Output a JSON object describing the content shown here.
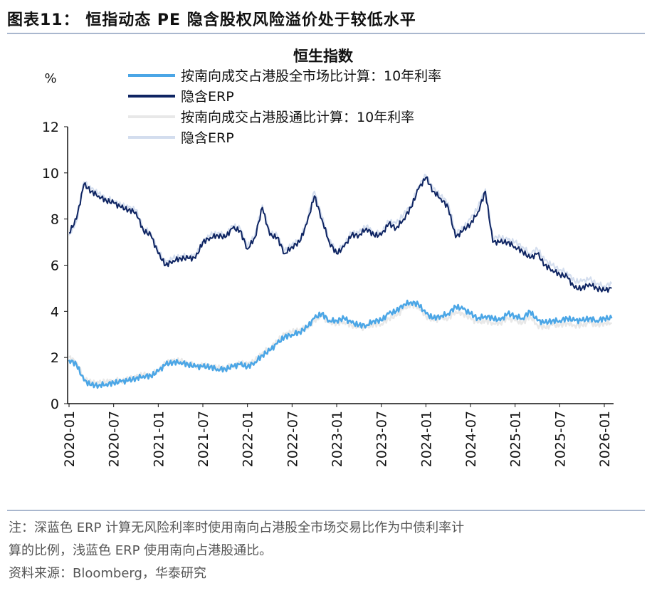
{
  "figure_title": "图表11： 恒指动态 PE 隐含股权风险溢价处于较低水平",
  "notes": {
    "line1": "注：深蓝色 ERP 计算无风险利率时使用南向占港股全市场交易比作为中债利率计",
    "line2": "算的比例，浅蓝色 ERP 使用南向占港股通比。",
    "source": "资料来源：Bloomberg，华泰研究"
  },
  "chart_data": {
    "type": "line",
    "title": "恒生指数",
    "ylabel": "%",
    "ylim": [
      0,
      12
    ],
    "yticks": [
      "0",
      "2",
      "4",
      "6",
      "8",
      "10",
      "12"
    ],
    "xrange": [
      "2020-01",
      "2026-02"
    ],
    "xticks": [
      "2020-01",
      "2020-07",
      "2021-01",
      "2021-07",
      "2022-01",
      "2022-07",
      "2023-01",
      "2023-07",
      "2024-01",
      "2024-07",
      "2025-01",
      "2025-07",
      "2026-01"
    ],
    "grid": false,
    "legend_position": "top",
    "x": [
      "2020-01",
      "2020-02",
      "2020-03",
      "2020-04",
      "2020-05",
      "2020-06",
      "2020-07",
      "2020-08",
      "2020-09",
      "2020-10",
      "2020-11",
      "2020-12",
      "2021-01",
      "2021-02",
      "2021-03",
      "2021-04",
      "2021-05",
      "2021-06",
      "2021-07",
      "2021-08",
      "2021-09",
      "2021-10",
      "2021-11",
      "2021-12",
      "2022-01",
      "2022-02",
      "2022-03",
      "2022-04",
      "2022-05",
      "2022-06",
      "2022-07",
      "2022-08",
      "2022-09",
      "2022-10",
      "2022-11",
      "2022-12",
      "2023-01",
      "2023-02",
      "2023-03",
      "2023-04",
      "2023-05",
      "2023-06",
      "2023-07",
      "2023-08",
      "2023-09",
      "2023-10",
      "2023-11",
      "2023-12",
      "2024-01",
      "2024-02",
      "2024-03",
      "2024-04",
      "2024-05",
      "2024-06",
      "2024-07",
      "2024-08",
      "2024-09",
      "2024-10",
      "2024-11",
      "2024-12",
      "2025-01",
      "2025-02",
      "2025-03",
      "2025-04",
      "2025-05",
      "2025-06",
      "2025-07",
      "2025-08",
      "2025-09",
      "2025-10",
      "2025-11",
      "2025-12",
      "2026-01",
      "2026-02"
    ],
    "series": [
      {
        "name": "按南向成交占港股通比计算：10年利率",
        "color": "#E8E8E8",
        "values": [
          2.0,
          1.8,
          1.1,
          0.9,
          0.9,
          0.95,
          1.0,
          1.0,
          1.05,
          1.15,
          1.25,
          1.25,
          1.45,
          1.75,
          1.85,
          1.85,
          1.75,
          1.65,
          1.65,
          1.6,
          1.55,
          1.55,
          1.65,
          1.75,
          1.7,
          1.85,
          2.2,
          2.4,
          2.7,
          3.0,
          3.1,
          3.2,
          3.3,
          3.6,
          3.8,
          3.5,
          3.5,
          3.55,
          3.4,
          3.3,
          3.3,
          3.45,
          3.45,
          3.7,
          3.8,
          4.1,
          4.3,
          4.2,
          3.8,
          3.6,
          3.7,
          3.7,
          4.0,
          3.9,
          3.7,
          3.5,
          3.6,
          3.5,
          3.5,
          3.7,
          3.6,
          3.5,
          3.8,
          3.4,
          3.3,
          3.4,
          3.4,
          3.5,
          3.4,
          3.4,
          3.5,
          3.4,
          3.5,
          3.5
        ]
      },
      {
        "name": "隐含ERP",
        "color": "#D3DDEE",
        "values": [
          7.3,
          7.9,
          9.6,
          9.3,
          9.1,
          8.9,
          8.8,
          8.6,
          8.5,
          8.4,
          7.6,
          7.4,
          6.6,
          6.1,
          6.3,
          6.4,
          6.4,
          6.4,
          7.0,
          7.3,
          7.4,
          7.3,
          7.7,
          7.6,
          6.8,
          7.3,
          8.6,
          7.4,
          7.3,
          6.6,
          6.9,
          7.1,
          7.9,
          9.2,
          8.1,
          7.1,
          6.6,
          6.9,
          7.4,
          7.4,
          7.7,
          7.4,
          7.4,
          7.9,
          7.8,
          8.2,
          8.6,
          9.4,
          9.9,
          9.3,
          9.0,
          8.7,
          7.4,
          7.6,
          8.0,
          8.5,
          9.3,
          7.2,
          7.2,
          7.1,
          7.0,
          6.8,
          6.5,
          6.7,
          6.2,
          6.0,
          5.8,
          5.7,
          5.3,
          5.3,
          5.4,
          5.2,
          5.1,
          5.2
        ]
      },
      {
        "name": "按南向成交占港股全市场比计算：10年利率",
        "color": "#4BA6E6",
        "values": [
          1.9,
          1.7,
          1.0,
          0.8,
          0.8,
          0.85,
          0.9,
          0.95,
          1.0,
          1.1,
          1.2,
          1.2,
          1.4,
          1.7,
          1.8,
          1.8,
          1.7,
          1.6,
          1.6,
          1.6,
          1.5,
          1.5,
          1.6,
          1.7,
          1.6,
          1.8,
          2.1,
          2.3,
          2.6,
          2.9,
          3.0,
          3.1,
          3.3,
          3.7,
          3.9,
          3.6,
          3.6,
          3.7,
          3.5,
          3.4,
          3.4,
          3.6,
          3.6,
          3.9,
          4.0,
          4.3,
          4.4,
          4.3,
          3.9,
          3.7,
          3.8,
          3.9,
          4.2,
          4.1,
          3.9,
          3.7,
          3.8,
          3.7,
          3.6,
          3.9,
          3.8,
          3.7,
          4.0,
          3.6,
          3.5,
          3.6,
          3.6,
          3.7,
          3.6,
          3.6,
          3.7,
          3.6,
          3.7,
          3.7
        ]
      },
      {
        "name": "隐含ERP",
        "color": "#0E2462",
        "values": [
          7.4,
          8.0,
          9.5,
          9.2,
          9.0,
          8.8,
          8.7,
          8.5,
          8.4,
          8.3,
          7.5,
          7.3,
          6.5,
          6.0,
          6.2,
          6.3,
          6.3,
          6.3,
          7.0,
          7.2,
          7.3,
          7.2,
          7.6,
          7.5,
          6.7,
          7.2,
          8.5,
          7.3,
          7.2,
          6.5,
          6.8,
          7.0,
          7.8,
          9.0,
          8.0,
          7.0,
          6.5,
          6.8,
          7.3,
          7.3,
          7.6,
          7.3,
          7.3,
          7.8,
          7.6,
          8.0,
          8.5,
          9.3,
          9.8,
          9.2,
          8.9,
          8.5,
          7.2,
          7.5,
          7.8,
          8.3,
          9.2,
          7.0,
          7.0,
          7.0,
          6.8,
          6.6,
          6.3,
          6.5,
          6.0,
          5.8,
          5.6,
          5.5,
          5.0,
          5.0,
          5.2,
          5.0,
          4.9,
          5.0
        ]
      }
    ],
    "legend": [
      {
        "label": "按南向成交占港股全市场比计算：10年利率",
        "color": "#4BA6E6"
      },
      {
        "label": "隐含ERP",
        "color": "#0E2462"
      },
      {
        "label": "按南向成交占港股通比计算：10年利率",
        "color": "#E8E8E8"
      },
      {
        "label": "隐含ERP",
        "color": "#D3DDEE"
      }
    ]
  }
}
